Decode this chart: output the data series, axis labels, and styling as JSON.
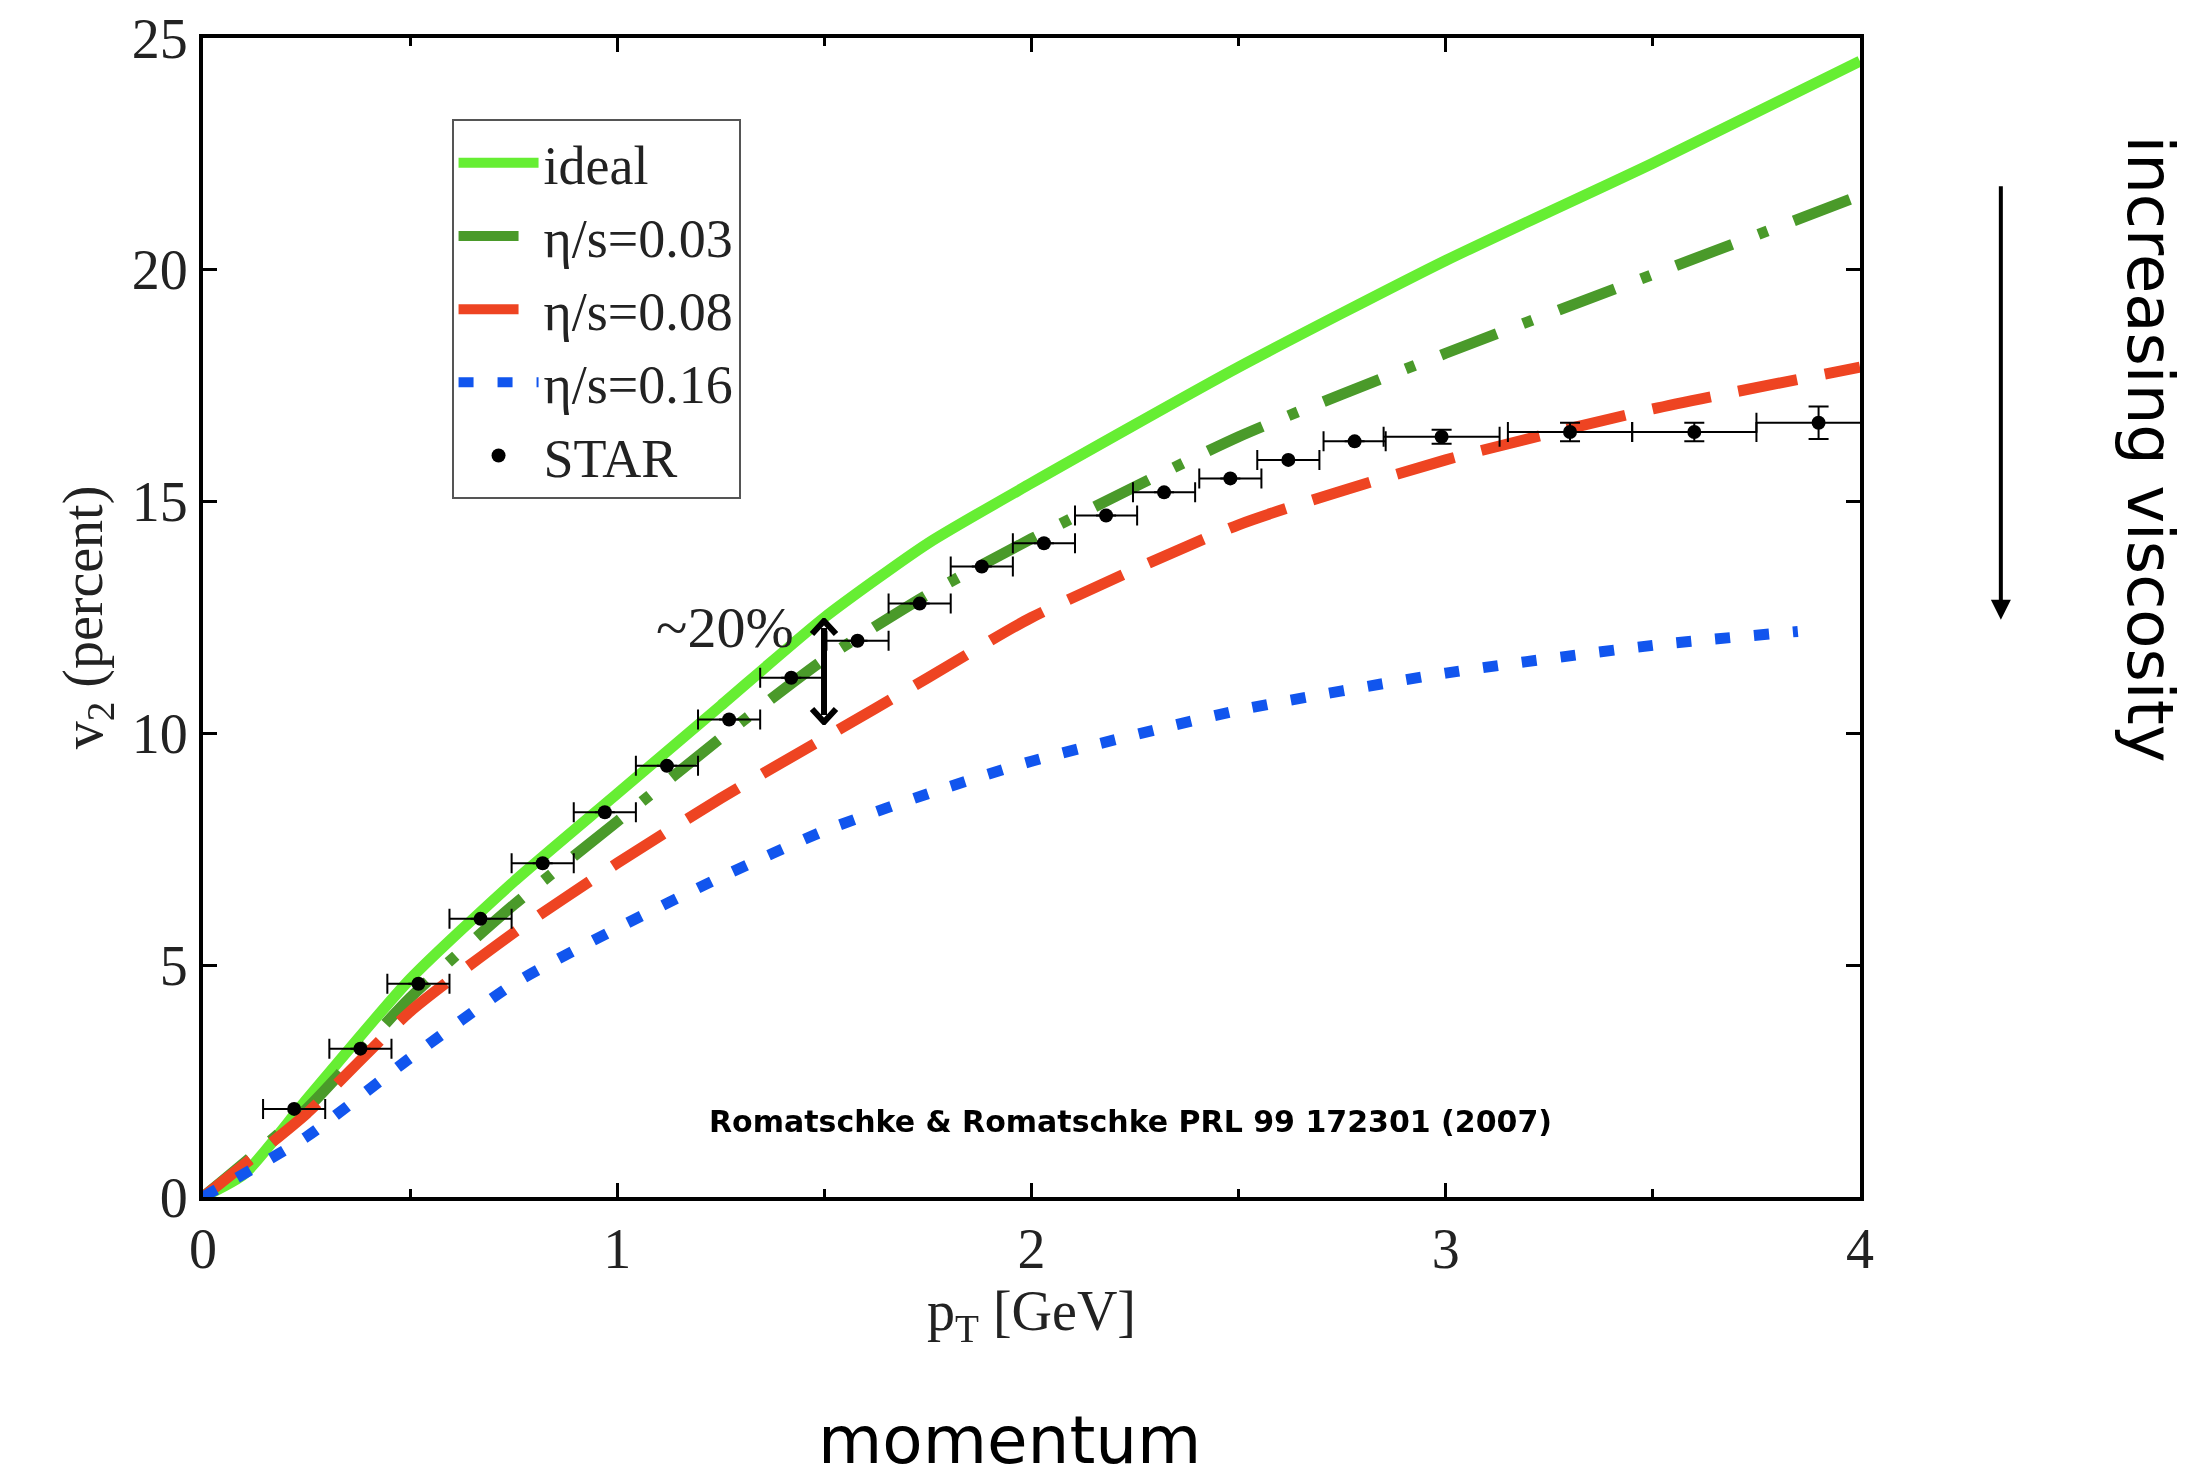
{
  "chart_data": {
    "type": "line",
    "xlabel": "p$_{T}$ [GeV]",
    "ylabel": "v$_{2}$ (percent)",
    "xlim": [
      0,
      4
    ],
    "ylim": [
      0,
      25
    ],
    "xticks": [
      0,
      1,
      2,
      3,
      4
    ],
    "yticks": [
      0,
      5,
      10,
      15,
      20,
      25
    ],
    "grid": false,
    "legend": "top left",
    "series": [
      {
        "name": "ideal",
        "color": "#66ee33",
        "line_style": "solid",
        "x": [
          0,
          0.1,
          0.25,
          0.5,
          0.75,
          1,
          1.25,
          1.5,
          1.75,
          2,
          2.5,
          3,
          3.5,
          4
        ],
        "values": [
          0,
          0.5,
          2.1,
          4.7,
          6.8,
          8.7,
          10.6,
          12.5,
          14.1,
          15.4,
          17.9,
          20.2,
          22.3,
          24.5
        ]
      },
      {
        "name": "η/s=0.03",
        "color": "#4a9a2a",
        "line_style": "dashdot",
        "x": [
          0,
          0.25,
          0.5,
          0.75,
          1,
          1.25,
          1.5,
          1.75,
          2,
          2.5,
          3,
          3.5,
          4
        ],
        "values": [
          0,
          1.9,
          4.3,
          6.3,
          8.1,
          9.9,
          11.6,
          13,
          14.2,
          16.4,
          18.2,
          19.9,
          21.6
        ]
      },
      {
        "name": "η/s=0.08",
        "color": "#ee4422",
        "line_style": "dashed",
        "x": [
          0,
          0.25,
          0.5,
          0.75,
          1,
          1.25,
          1.5,
          1.75,
          2,
          2.5,
          3,
          3.5,
          4
        ],
        "values": [
          0,
          1.8,
          4,
          5.7,
          7.2,
          8.6,
          9.9,
          11.2,
          12.5,
          14.5,
          15.9,
          17,
          17.9
        ]
      },
      {
        "name": "η/s=0.16",
        "color": "#1155ee",
        "line_style": "dotted",
        "x": [
          0,
          0.25,
          0.5,
          0.75,
          1,
          1.25,
          1.5,
          1.75,
          2,
          2.5,
          3,
          3.5,
          3.85
        ],
        "values": [
          0,
          1.3,
          3,
          4.6,
          5.8,
          6.9,
          7.9,
          8.7,
          9.4,
          10.5,
          11.3,
          11.9,
          12.2
        ]
      },
      {
        "name": "STAR",
        "type": "scatter",
        "marker": "circle",
        "color": "#000000",
        "x": [
          0.22,
          0.38,
          0.52,
          0.67,
          0.82,
          0.97,
          1.12,
          1.27,
          1.42,
          1.58,
          1.73,
          1.88,
          2.03,
          2.18,
          2.32,
          2.48,
          2.62,
          2.78,
          2.99,
          3.3,
          3.6,
          3.9
        ],
        "values": [
          1.9,
          3.2,
          4.6,
          6,
          7.2,
          8.3,
          9.3,
          10.3,
          11.2,
          12,
          12.8,
          13.6,
          14.1,
          14.7,
          15.2,
          15.5,
          15.9,
          16.3,
          16.4,
          16.5,
          16.5,
          16.7
        ],
        "xerrors": [
          0.075,
          0.075,
          0.075,
          0.075,
          0.075,
          0.075,
          0.075,
          0.075,
          0.075,
          0.075,
          0.075,
          0.075,
          0.075,
          0.075,
          0.075,
          0.075,
          0.075,
          0.075,
          0.14,
          0.15,
          0.15,
          0.15
        ],
        "errors": [
          null,
          null,
          null,
          null,
          null,
          null,
          null,
          null,
          null,
          null,
          null,
          null,
          null,
          null,
          null,
          null,
          null,
          null,
          0.15,
          0.2,
          0.2,
          0.35
        ]
      }
    ],
    "annotations": [
      {
        "text": "~20%",
        "x": 1.5,
        "y": 11.15
      },
      "Romatschke & Romatschke PRL 99 172301 (2007)",
      "momentum",
      "increasing viscosity"
    ]
  }
}
